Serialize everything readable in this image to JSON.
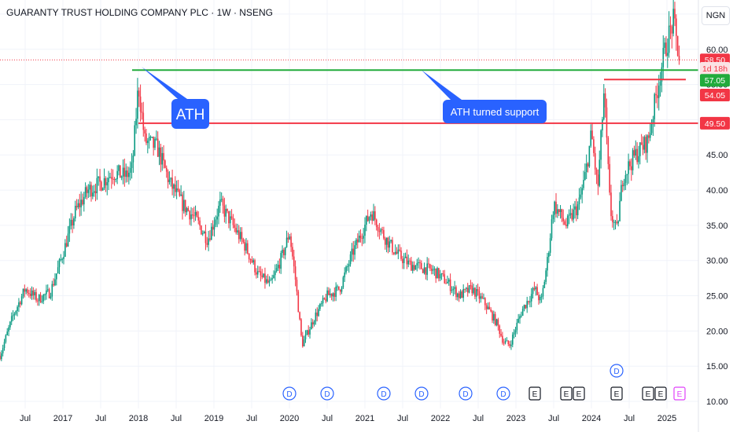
{
  "header": {
    "title": "GUARANTY TRUST HOLDING COMPANY PLC · 1W · NSENG",
    "currency": "NGN"
  },
  "colors": {
    "up": "#089981",
    "down": "#f23645",
    "support_line": "#22ab3c",
    "resistance_line": "#f23645",
    "callout_bg": "#2962ff",
    "grid": "#f0f3fa",
    "axis_text": "#131722"
  },
  "chart_data": {
    "type": "candlestick",
    "x_axis": {
      "tick_labels": [
        "Jul",
        "2017",
        "Jul",
        "2018",
        "Jul",
        "2019",
        "Jul",
        "2020",
        "Jul",
        "2021",
        "Jul",
        "2022",
        "Jul",
        "2023",
        "Jul",
        "2024",
        "Jul",
        "2025"
      ],
      "range": [
        "2016-03",
        "2025-06"
      ]
    },
    "y_axis": {
      "ticks": [
        10,
        15,
        20,
        25,
        30,
        35,
        40,
        45,
        50,
        55,
        60,
        65
      ],
      "tick_labels": [
        "10.00",
        "15.00",
        "20.00",
        "25.00",
        "30.00",
        "35.00",
        "40.00",
        "45.00",
        "50.00",
        "55.00",
        "60.00",
        "65.00"
      ],
      "range": [
        9,
        67
      ]
    },
    "price_path": [
      [
        "2016-03",
        16.5
      ],
      [
        "2016-05",
        22
      ],
      [
        "2016-07",
        26
      ],
      [
        "2016-09",
        24.5
      ],
      [
        "2016-11",
        25.5
      ],
      [
        "2017-01",
        31
      ],
      [
        "2017-03",
        37
      ],
      [
        "2017-05",
        40
      ],
      [
        "2017-07",
        41
      ],
      [
        "2017-09",
        42.5
      ],
      [
        "2017-11",
        42
      ],
      [
        "2017-12",
        43
      ],
      [
        "2018-01",
        55
      ],
      [
        "2018-02",
        47
      ],
      [
        "2018-04",
        46
      ],
      [
        "2018-06",
        41
      ],
      [
        "2018-08",
        38
      ],
      [
        "2018-10",
        36
      ],
      [
        "2018-12",
        33
      ],
      [
        "2019-02",
        38
      ],
      [
        "2019-04",
        35
      ],
      [
        "2019-06",
        32
      ],
      [
        "2019-08",
        28
      ],
      [
        "2019-10",
        26.5
      ],
      [
        "2019-12",
        31
      ],
      [
        "2020-01",
        34
      ],
      [
        "2020-02",
        27
      ],
      [
        "2020-03",
        18
      ],
      [
        "2020-05",
        22
      ],
      [
        "2020-07",
        25
      ],
      [
        "2020-09",
        26
      ],
      [
        "2020-11",
        31
      ],
      [
        "2021-01",
        35
      ],
      [
        "2021-02",
        37
      ],
      [
        "2021-04",
        33.5
      ],
      [
        "2021-06",
        31
      ],
      [
        "2021-08",
        29.5
      ],
      [
        "2021-10",
        29
      ],
      [
        "2021-12",
        28.5
      ],
      [
        "2022-02",
        27
      ],
      [
        "2022-04",
        25
      ],
      [
        "2022-06",
        26
      ],
      [
        "2022-08",
        24
      ],
      [
        "2022-10",
        21
      ],
      [
        "2022-11",
        18.5
      ],
      [
        "2022-12",
        18
      ],
      [
        "2023-02",
        23
      ],
      [
        "2023-04",
        26
      ],
      [
        "2023-05",
        24
      ],
      [
        "2023-06",
        30
      ],
      [
        "2023-07",
        38
      ],
      [
        "2023-09",
        35
      ],
      [
        "2023-11",
        38
      ],
      [
        "2023-12",
        42
      ],
      [
        "2024-01",
        48
      ],
      [
        "2024-02",
        40
      ],
      [
        "2024-03",
        54
      ],
      [
        "2024-04",
        37
      ],
      [
        "2024-05",
        34
      ],
      [
        "2024-06",
        42
      ],
      [
        "2024-08",
        45
      ],
      [
        "2024-10",
        47
      ],
      [
        "2024-11",
        52
      ],
      [
        "2024-12",
        57
      ],
      [
        "2025-01",
        61
      ],
      [
        "2025-02",
        64
      ],
      [
        "2025-03",
        58.5
      ]
    ],
    "horizontal_lines": [
      {
        "name": "ATH",
        "y": 57.05,
        "color": "support",
        "from": "2017-12"
      },
      {
        "name": "resistance",
        "y": 49.5,
        "color": "resistance",
        "from": "2018-01"
      },
      {
        "name": "recent",
        "y": 55.7,
        "color": "resistance",
        "from": "2024-03",
        "to": "2025-04"
      }
    ],
    "annotations": [
      {
        "text": "ATH",
        "anchor": [
          "2018-01",
          57.5
        ]
      },
      {
        "text": "ATH turned support",
        "anchor": [
          "2021-10",
          57.05
        ]
      }
    ],
    "price_labels": [
      {
        "text": "58.50",
        "y": 58.5,
        "color": "#f23645"
      },
      {
        "text": "1d 18h",
        "y": 57.3,
        "color": "#f23645",
        "style": "light"
      },
      {
        "text": "57.05",
        "y": 55.6,
        "color": "#22ab3c"
      },
      {
        "text": "54.05",
        "y": 53.5,
        "color": "#f23645"
      },
      {
        "text": "49.50",
        "y": 49.5,
        "color": "#f23645"
      }
    ],
    "event_markers": [
      {
        "type": "D",
        "x": "2020-01",
        "row": 0
      },
      {
        "type": "D",
        "x": "2020-07",
        "row": 0
      },
      {
        "type": "D",
        "x": "2021-04",
        "row": 0
      },
      {
        "type": "D",
        "x": "2021-10",
        "row": 0
      },
      {
        "type": "D",
        "x": "2022-05",
        "row": 0
      },
      {
        "type": "D",
        "x": "2022-11",
        "row": 0
      },
      {
        "type": "E",
        "x": "2023-04",
        "row": 0
      },
      {
        "type": "E",
        "x": "2023-09",
        "row": 0
      },
      {
        "type": "E",
        "x": "2023-11",
        "row": 0
      },
      {
        "type": "E",
        "x": "2024-05",
        "row": 0
      },
      {
        "type": "D",
        "x": "2024-05",
        "row": 1
      },
      {
        "type": "E",
        "x": "2024-10",
        "row": 0
      },
      {
        "type": "E",
        "x": "2024-12",
        "row": 0
      },
      {
        "type": "E",
        "x": "2025-03",
        "row": 0,
        "style": "future"
      }
    ]
  }
}
